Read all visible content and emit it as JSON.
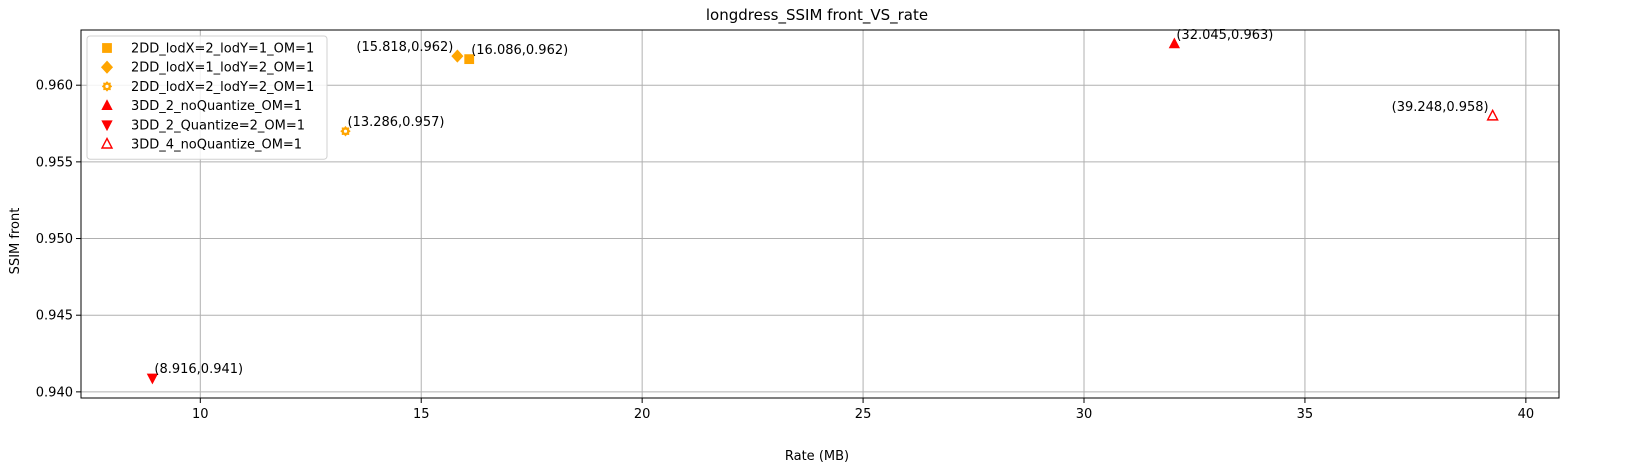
{
  "chart_data": {
    "type": "scatter",
    "title": "longdress_SSIM front_VS_rate",
    "xlabel": "Rate (MB)",
    "ylabel": "SSIM front",
    "xlim": [
      7.3,
      40.75
    ],
    "ylim": [
      0.9396,
      0.9636
    ],
    "xticks": [
      10,
      15,
      20,
      25,
      30,
      35,
      40
    ],
    "yticks": [
      0.94,
      0.945,
      0.95,
      0.955,
      0.96
    ],
    "xtick_labels": [
      "10",
      "15",
      "20",
      "25",
      "30",
      "35",
      "40"
    ],
    "ytick_labels": [
      "0.940",
      "0.945",
      "0.950",
      "0.955",
      "0.960"
    ],
    "grid": true,
    "legend_position": "top-left",
    "series": [
      {
        "name": "2DD_lodX=2_lodY=1_OM=1",
        "marker": "square",
        "color": "#ffa500",
        "filled": true,
        "points": [
          {
            "x": 16.086,
            "y": 0.9617,
            "label": "(16.086,0.962)",
            "label_side": "right"
          }
        ]
      },
      {
        "name": "2DD_lodX=1_lodY=2_OM=1",
        "marker": "diamond",
        "color": "#ffa500",
        "filled": true,
        "points": [
          {
            "x": 15.818,
            "y": 0.9619,
            "label": "(15.818,0.962)",
            "label_side": "left"
          }
        ]
      },
      {
        "name": "2DD_lodX=2_lodY=2_OM=1",
        "marker": "gear",
        "color": "#ffa500",
        "filled": true,
        "points": [
          {
            "x": 13.286,
            "y": 0.957,
            "label": "(13.286,0.957)",
            "label_side": "right"
          }
        ]
      },
      {
        "name": "3DD_2_noQuantize_OM=1",
        "marker": "triangle-up",
        "color": "#ff0000",
        "filled": true,
        "points": [
          {
            "x": 32.045,
            "y": 0.9627,
            "label": "(32.045,0.963)",
            "label_side": "right"
          }
        ]
      },
      {
        "name": "3DD_2_Quantize=2_OM=1",
        "marker": "triangle-down",
        "color": "#ff0000",
        "filled": true,
        "points": [
          {
            "x": 8.916,
            "y": 0.9409,
            "label": "(8.916,0.941)",
            "label_side": "right"
          }
        ]
      },
      {
        "name": "3DD_4_noQuantize_OM=1",
        "marker": "triangle-up",
        "color": "#ff0000",
        "filled": false,
        "points": [
          {
            "x": 39.248,
            "y": 0.958,
            "label": "(39.248,0.958)",
            "label_side": "left"
          }
        ]
      }
    ]
  }
}
